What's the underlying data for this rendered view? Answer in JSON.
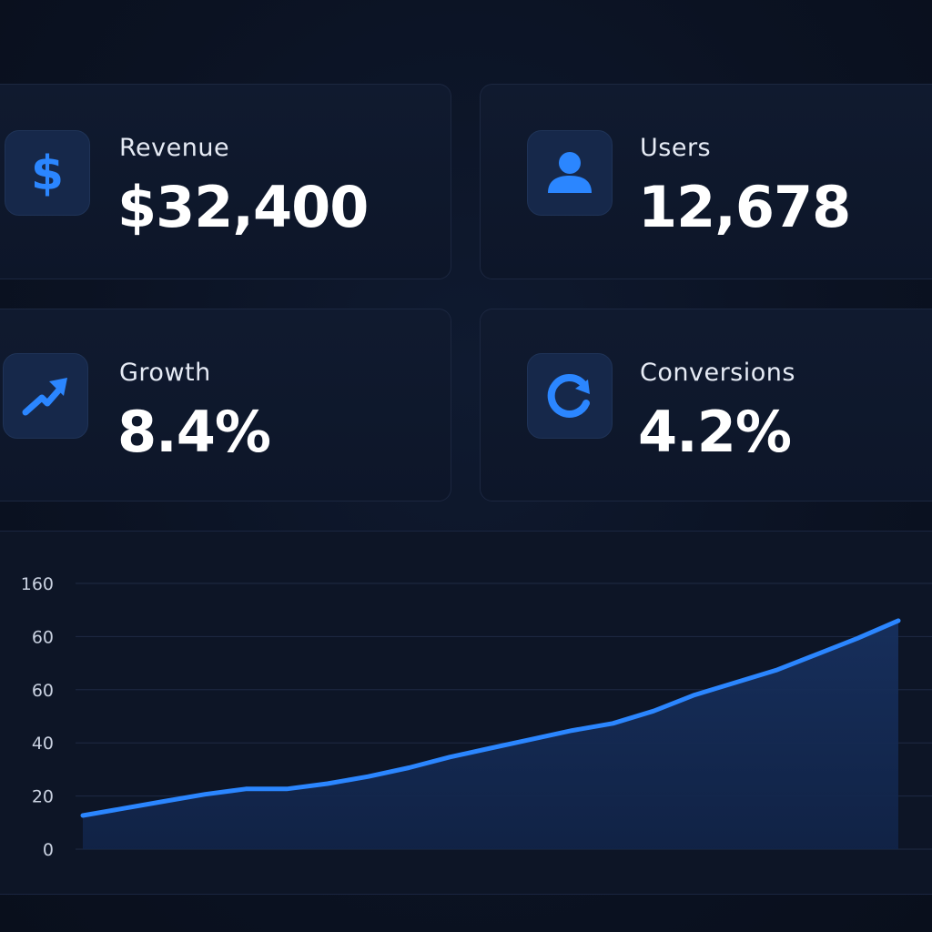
{
  "colors": {
    "accent": "#2b86ff",
    "card_bg": "#0f192d",
    "page_bg": "#0a1020"
  },
  "cards": [
    {
      "label": "Revenue",
      "value": "$32,400",
      "icon": "dollar-icon"
    },
    {
      "label": "Users",
      "value": "12,678",
      "icon": "user-icon"
    },
    {
      "label": "Growth",
      "value": "8.4%",
      "icon": "trend-up-icon"
    },
    {
      "label": "Conversions",
      "value": "4.2%",
      "icon": "refresh-icon"
    }
  ],
  "chart_data": {
    "type": "area",
    "title": "",
    "xlabel": "",
    "ylabel": "",
    "y_tick_labels": [
      "0",
      "20",
      "40",
      "60",
      "60",
      "160"
    ],
    "grid": true,
    "x": [
      0,
      1,
      2,
      3,
      4,
      5,
      6,
      7,
      8,
      9,
      10,
      11,
      12,
      13,
      14,
      15,
      16,
      17,
      18,
      19,
      20
    ],
    "series": [
      {
        "values": [
          0.19,
          0.23,
          0.27,
          0.31,
          0.34,
          0.34,
          0.37,
          0.41,
          0.46,
          0.52,
          0.57,
          0.62,
          0.67,
          0.71,
          0.78,
          0.87,
          0.94,
          1.01,
          1.1,
          1.19,
          1.29
        ]
      }
    ],
    "ylim": [
      0,
      1.5
    ]
  }
}
